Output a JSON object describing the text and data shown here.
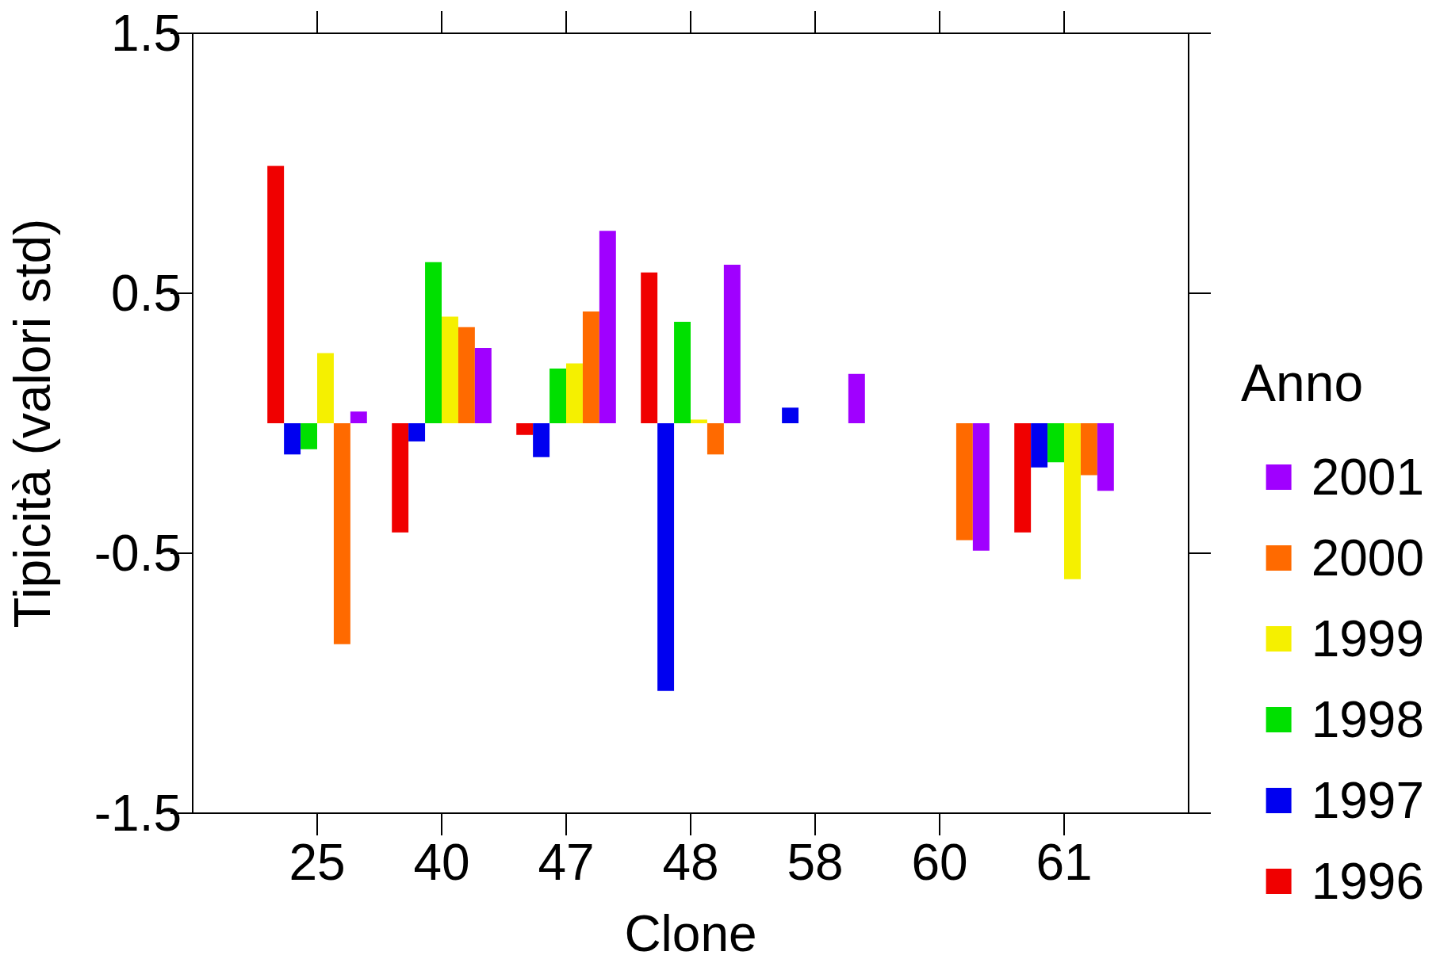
{
  "chart_data": {
    "type": "bar",
    "xlabel": "Clone",
    "ylabel": "Tipicità (valori std)",
    "legend_title": "Anno",
    "legend": "right",
    "grid": false,
    "categories": [
      "25",
      "40",
      "47",
      "48",
      "58",
      "60",
      "61"
    ],
    "ylim": [
      -1.5,
      1.5
    ],
    "yticks": [
      -1.5,
      -0.5,
      0.5,
      1.5
    ],
    "series": [
      {
        "name": "1996",
        "color": "#f00000",
        "values": [
          0.99,
          -0.42,
          -0.045,
          0.58,
          null,
          null,
          -0.42
        ]
      },
      {
        "name": "1997",
        "color": "#0000f0",
        "values": [
          -0.12,
          -0.07,
          -0.13,
          -1.03,
          0.06,
          null,
          -0.17
        ]
      },
      {
        "name": "1998",
        "color": "#00e000",
        "values": [
          -0.1,
          0.62,
          0.21,
          0.39,
          null,
          null,
          -0.15
        ]
      },
      {
        "name": "1999",
        "color": "#f5f000",
        "values": [
          0.27,
          0.41,
          0.23,
          0.014,
          null,
          null,
          -0.6
        ]
      },
      {
        "name": "2000",
        "color": "#ff6a00",
        "values": [
          -0.85,
          0.37,
          0.43,
          -0.12,
          null,
          -0.45,
          -0.2
        ]
      },
      {
        "name": "2001",
        "color": "#a000ff",
        "values": [
          0.045,
          0.29,
          0.74,
          0.61,
          0.19,
          -0.49,
          -0.26
        ]
      }
    ]
  }
}
